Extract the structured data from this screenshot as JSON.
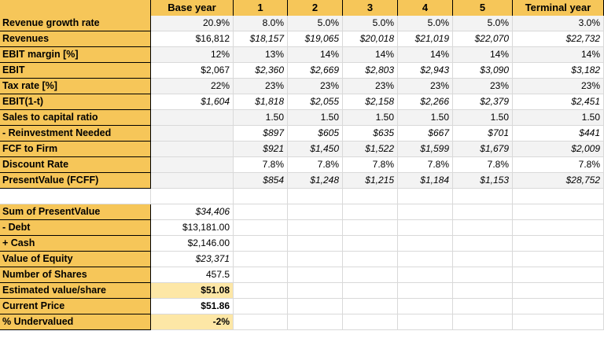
{
  "spreadsheet": {
    "header": [
      "",
      "Base year",
      "1",
      "2",
      "3",
      "4",
      "5",
      "Terminal year"
    ],
    "projection_rows": [
      {
        "label": "Revenue growth rate",
        "values": [
          "20.9%",
          "8.0%",
          "5.0%",
          "5.0%",
          "5.0%",
          "5.0%",
          "3.0%"
        ]
      },
      {
        "label": "Revenues",
        "values": [
          "$16,812",
          "$18,157",
          "$19,065",
          "$20,018",
          "$21,019",
          "$22,070",
          "$22,732"
        ]
      },
      {
        "label": "EBIT margin [%]",
        "values": [
          "12%",
          "13%",
          "14%",
          "14%",
          "14%",
          "14%",
          "14%"
        ]
      },
      {
        "label": "EBIT",
        "values": [
          "$2,067",
          "$2,360",
          "$2,669",
          "$2,803",
          "$2,943",
          "$3,090",
          "$3,182"
        ]
      },
      {
        "label": "Tax rate [%]",
        "values": [
          "22%",
          "23%",
          "23%",
          "23%",
          "23%",
          "23%",
          "23%"
        ]
      },
      {
        "label": "EBIT(1-t)",
        "values": [
          "$1,604",
          "$1,818",
          "$2,055",
          "$2,158",
          "$2,266",
          "$2,379",
          "$2,451"
        ]
      },
      {
        "label": "Sales to capital ratio",
        "values": [
          "",
          "1.50",
          "1.50",
          "1.50",
          "1.50",
          "1.50",
          "1.50"
        ]
      },
      {
        "label": " - Reinvestment Needed",
        "values": [
          "",
          "$897",
          "$605",
          "$635",
          "$667",
          "$701",
          "$441"
        ]
      },
      {
        "label": "FCF to Firm",
        "values": [
          "",
          "$921",
          "$1,450",
          "$1,522",
          "$1,599",
          "$1,679",
          "$2,009"
        ]
      },
      {
        "label": "Discount Rate",
        "values": [
          "",
          "7.8%",
          "7.8%",
          "7.8%",
          "7.8%",
          "7.8%",
          "7.8%"
        ]
      },
      {
        "label": "PresentValue (FCFF)",
        "values": [
          "",
          "$854",
          "$1,248",
          "$1,215",
          "$1,184",
          "$1,153",
          "$28,752"
        ]
      }
    ],
    "summary_rows": [
      {
        "label": "Sum of PresentValue",
        "value": "$34,406"
      },
      {
        "label": " - Debt",
        "value": "$13,181.00"
      },
      {
        "label": " + Cash",
        "value": "$2,146.00"
      },
      {
        "label": "Value of Equity",
        "value": "$23,371"
      },
      {
        "label": "Number of Shares",
        "value": "457.5"
      },
      {
        "label": "Estimated value/share",
        "value": "$51.08"
      },
      {
        "label": "Current Price",
        "value": "$51.86"
      },
      {
        "label": "% Undervalued",
        "value": "-2%"
      }
    ],
    "colors": {
      "header_fill": "#f6c659",
      "highlight_fill": "#fde7a6",
      "alt_row_fill": "#f3f3f3"
    }
  }
}
